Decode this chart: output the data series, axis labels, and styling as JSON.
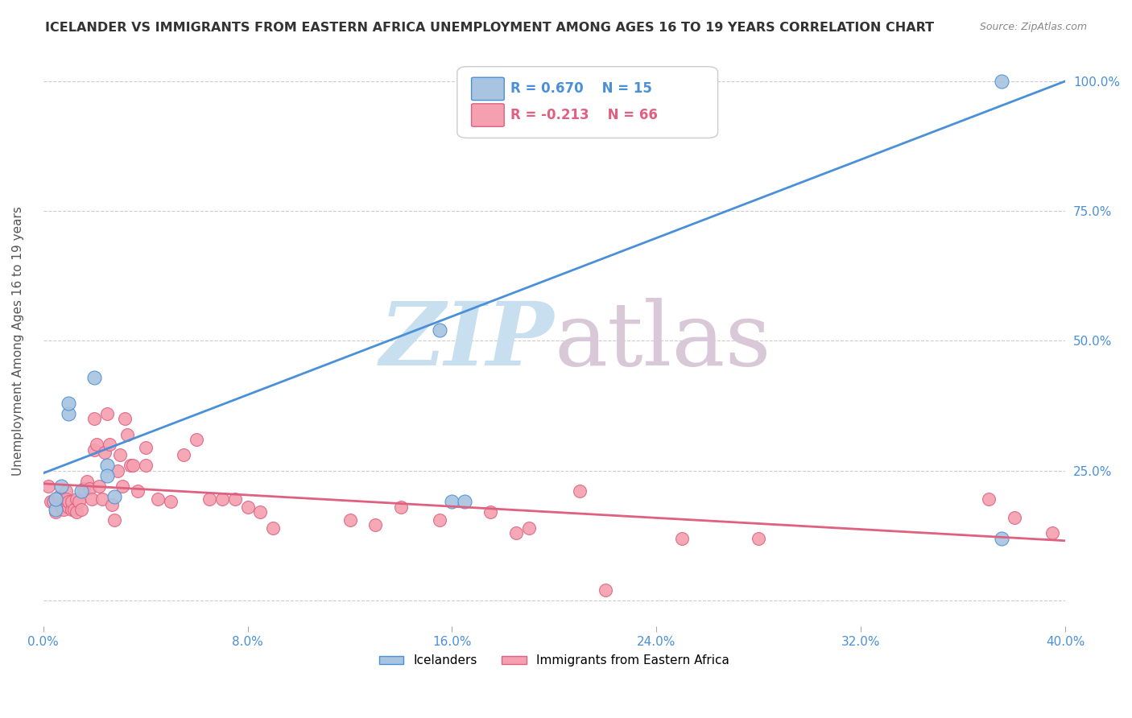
{
  "title": "ICELANDER VS IMMIGRANTS FROM EASTERN AFRICA UNEMPLOYMENT AMONG AGES 16 TO 19 YEARS CORRELATION CHART",
  "source": "Source: ZipAtlas.com",
  "xlabel": "",
  "ylabel": "Unemployment Among Ages 16 to 19 years",
  "xlim": [
    0.0,
    0.4
  ],
  "ylim": [
    -0.05,
    1.05
  ],
  "xticks": [
    0.0,
    0.08,
    0.16,
    0.24,
    0.32,
    0.4
  ],
  "yticks": [
    0.0,
    0.25,
    0.5,
    0.75,
    1.0
  ],
  "right_yticks": [
    0.0,
    0.25,
    0.5,
    0.75,
    1.0
  ],
  "right_yticklabels": [
    "",
    "25.0%",
    "50.0%",
    "75.0%",
    "100.0%"
  ],
  "blue_R": 0.67,
  "blue_N": 15,
  "pink_R": -0.213,
  "pink_N": 66,
  "blue_color": "#a8c4e0",
  "pink_color": "#f4a0b0",
  "blue_line_color": "#4a90d9",
  "pink_line_color": "#e06080",
  "blue_trend_x": [
    0.0,
    0.4
  ],
  "blue_trend_y": [
    0.245,
    1.0
  ],
  "pink_trend_x": [
    0.0,
    0.4
  ],
  "pink_trend_y": [
    0.225,
    0.115
  ],
  "watermark_zip": "ZIP",
  "watermark_atlas": "atlas",
  "watermark_color_zip": "#c8dff0",
  "watermark_color_atlas": "#d8c8d8",
  "blue_points_x": [
    0.005,
    0.005,
    0.007,
    0.01,
    0.01,
    0.015,
    0.02,
    0.025,
    0.025,
    0.028,
    0.155,
    0.16,
    0.165,
    0.375,
    0.375
  ],
  "blue_points_y": [
    0.175,
    0.195,
    0.22,
    0.36,
    0.38,
    0.21,
    0.43,
    0.26,
    0.24,
    0.2,
    0.52,
    0.19,
    0.19,
    1.0,
    0.12
  ],
  "pink_points_x": [
    0.002,
    0.003,
    0.004,
    0.005,
    0.006,
    0.007,
    0.008,
    0.009,
    0.009,
    0.01,
    0.01,
    0.011,
    0.011,
    0.012,
    0.013,
    0.013,
    0.014,
    0.015,
    0.016,
    0.017,
    0.018,
    0.019,
    0.02,
    0.02,
    0.021,
    0.022,
    0.023,
    0.024,
    0.025,
    0.026,
    0.027,
    0.028,
    0.029,
    0.03,
    0.031,
    0.032,
    0.033,
    0.034,
    0.035,
    0.037,
    0.04,
    0.04,
    0.045,
    0.05,
    0.055,
    0.06,
    0.065,
    0.07,
    0.075,
    0.08,
    0.085,
    0.09,
    0.12,
    0.13,
    0.14,
    0.155,
    0.175,
    0.185,
    0.19,
    0.21,
    0.22,
    0.25,
    0.28,
    0.37,
    0.38,
    0.395
  ],
  "pink_points_y": [
    0.22,
    0.19,
    0.19,
    0.17,
    0.2,
    0.18,
    0.175,
    0.21,
    0.195,
    0.18,
    0.19,
    0.175,
    0.19,
    0.175,
    0.17,
    0.195,
    0.19,
    0.175,
    0.215,
    0.23,
    0.215,
    0.195,
    0.29,
    0.35,
    0.3,
    0.22,
    0.195,
    0.285,
    0.36,
    0.3,
    0.185,
    0.155,
    0.25,
    0.28,
    0.22,
    0.35,
    0.32,
    0.26,
    0.26,
    0.21,
    0.295,
    0.26,
    0.195,
    0.19,
    0.28,
    0.31,
    0.195,
    0.195,
    0.195,
    0.18,
    0.17,
    0.14,
    0.155,
    0.145,
    0.18,
    0.155,
    0.17,
    0.13,
    0.14,
    0.21,
    0.02,
    0.12,
    0.12,
    0.195,
    0.16,
    0.13
  ],
  "legend_bottom_labels": [
    "Icelanders",
    "Immigrants from Eastern Africa"
  ]
}
